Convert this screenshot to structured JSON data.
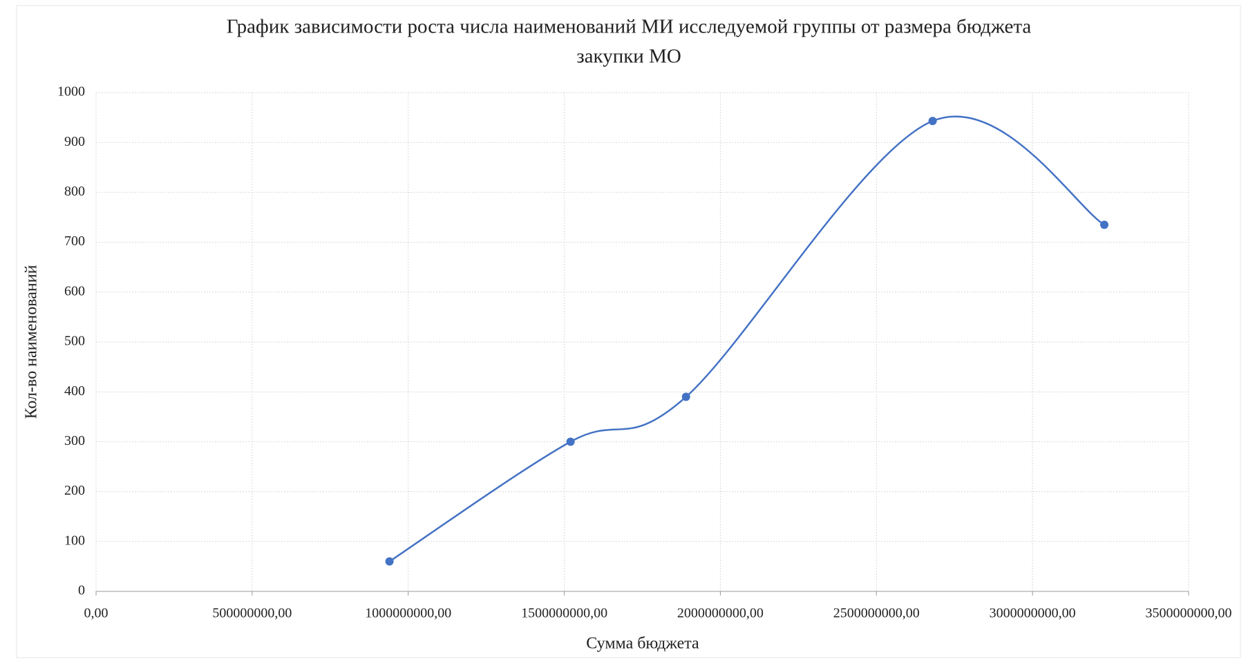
{
  "chart_data": {
    "type": "scatter",
    "title": [
      "График зависимости роста числа наименований МИ исследуемой группы от размера бюджета",
      "закупки МО"
    ],
    "x_label": "Сумма бюджета",
    "y_label": "Кол-во наименований",
    "smooth": true,
    "grid": true,
    "series": [
      {
        "color": "#4472c4",
        "x": [
          940000000,
          1520000000,
          1890000000,
          2680000000,
          3230000000
        ],
        "values": [
          60,
          300,
          390,
          943,
          735
        ]
      }
    ],
    "xlim": [
      0,
      3500000000
    ],
    "xticks": [
      {
        "value": 0,
        "label": "0,00"
      },
      {
        "value": 500000000,
        "label": "500000000,00"
      },
      {
        "value": 1000000000,
        "label": "1000000000,00"
      },
      {
        "value": 1500000000,
        "label": "1500000000,00"
      },
      {
        "value": 2000000000,
        "label": "2000000000,00"
      },
      {
        "value": 2500000000,
        "label": "2500000000,00"
      },
      {
        "value": 3000000000,
        "label": "3000000000,00"
      },
      {
        "value": 3500000000,
        "label": "3500000000,00"
      }
    ],
    "ylim": [
      0,
      1000
    ],
    "yticks": [
      0,
      100,
      200,
      300,
      400,
      500,
      600,
      700,
      800,
      900,
      1000
    ]
  }
}
